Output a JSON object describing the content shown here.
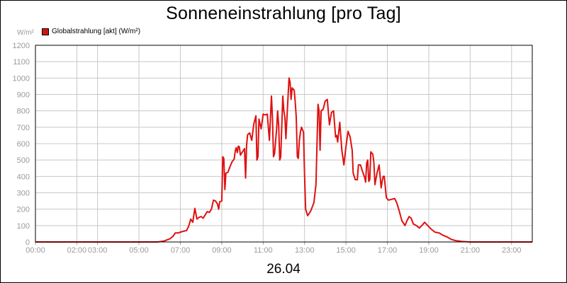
{
  "chart_data": {
    "type": "line",
    "title": "Sonneneinstrahlung [pro Tag]",
    "ylabel": "W/m²",
    "xlabel": "26.04",
    "ylim": [
      0,
      1200
    ],
    "xlim": [
      0,
      24
    ],
    "grid": true,
    "legend_position": "top-left",
    "y_ticks": [
      "0",
      "100",
      "200",
      "300",
      "400",
      "500",
      "600",
      "700",
      "800",
      "900",
      "1000",
      "1100",
      "1200"
    ],
    "x_ticks": [
      {
        "label": "00:00",
        "x": 0
      },
      {
        "label": "02:00",
        "x": 2
      },
      {
        "label": "03:00",
        "x": 3
      },
      {
        "label": "05:00",
        "x": 5
      },
      {
        "label": "07:00",
        "x": 7
      },
      {
        "label": "09:00",
        "x": 9
      },
      {
        "label": "11:00",
        "x": 11
      },
      {
        "label": "13:00",
        "x": 13
      },
      {
        "label": "15:00",
        "x": 15
      },
      {
        "label": "17:00",
        "x": 17
      },
      {
        "label": "19:00",
        "x": 19
      },
      {
        "label": "21:00",
        "x": 21
      },
      {
        "label": "23:00",
        "x": 23
      }
    ],
    "series": [
      {
        "name": "Globalstrahlung [akt] (W/m²)",
        "color": "#e01010",
        "points": [
          [
            0,
            0
          ],
          [
            5.9,
            0
          ],
          [
            6.2,
            5
          ],
          [
            6.5,
            20
          ],
          [
            6.65,
            35
          ],
          [
            6.75,
            55
          ],
          [
            6.9,
            55
          ],
          [
            7.0,
            60
          ],
          [
            7.15,
            65
          ],
          [
            7.3,
            70
          ],
          [
            7.4,
            95
          ],
          [
            7.5,
            140
          ],
          [
            7.6,
            120
          ],
          [
            7.7,
            205
          ],
          [
            7.8,
            140
          ],
          [
            7.9,
            150
          ],
          [
            8.0,
            155
          ],
          [
            8.1,
            145
          ],
          [
            8.2,
            165
          ],
          [
            8.3,
            185
          ],
          [
            8.4,
            180
          ],
          [
            8.5,
            200
          ],
          [
            8.6,
            255
          ],
          [
            8.7,
            250
          ],
          [
            8.8,
            230
          ],
          [
            8.85,
            200
          ],
          [
            8.9,
            245
          ],
          [
            9.0,
            250
          ],
          [
            9.05,
            520
          ],
          [
            9.1,
            510
          ],
          [
            9.15,
            320
          ],
          [
            9.2,
            420
          ],
          [
            9.3,
            425
          ],
          [
            9.4,
            460
          ],
          [
            9.5,
            490
          ],
          [
            9.6,
            505
          ],
          [
            9.65,
            555
          ],
          [
            9.7,
            575
          ],
          [
            9.75,
            545
          ],
          [
            9.8,
            585
          ],
          [
            9.85,
            580
          ],
          [
            9.9,
            530
          ],
          [
            10.0,
            550
          ],
          [
            10.1,
            570
          ],
          [
            10.15,
            390
          ],
          [
            10.2,
            590
          ],
          [
            10.25,
            655
          ],
          [
            10.35,
            665
          ],
          [
            10.45,
            620
          ],
          [
            10.55,
            720
          ],
          [
            10.65,
            770
          ],
          [
            10.7,
            500
          ],
          [
            10.75,
            520
          ],
          [
            10.8,
            750
          ],
          [
            10.9,
            690
          ],
          [
            11.0,
            780
          ],
          [
            11.1,
            775
          ],
          [
            11.2,
            780
          ],
          [
            11.3,
            620
          ],
          [
            11.4,
            890
          ],
          [
            11.45,
            760
          ],
          [
            11.5,
            520
          ],
          [
            11.55,
            540
          ],
          [
            11.65,
            690
          ],
          [
            11.7,
            800
          ],
          [
            11.75,
            710
          ],
          [
            11.8,
            500
          ],
          [
            11.85,
            520
          ],
          [
            11.95,
            890
          ],
          [
            12.0,
            800
          ],
          [
            12.05,
            760
          ],
          [
            12.1,
            630
          ],
          [
            12.15,
            760
          ],
          [
            12.25,
            1000
          ],
          [
            12.3,
            975
          ],
          [
            12.35,
            870
          ],
          [
            12.4,
            940
          ],
          [
            12.5,
            925
          ],
          [
            12.55,
            850
          ],
          [
            12.6,
            760
          ],
          [
            12.65,
            520
          ],
          [
            12.7,
            510
          ],
          [
            12.75,
            620
          ],
          [
            12.8,
            670
          ],
          [
            12.85,
            700
          ],
          [
            12.95,
            670
          ],
          [
            13.0,
            410
          ],
          [
            13.05,
            200
          ],
          [
            13.15,
            160
          ],
          [
            13.3,
            190
          ],
          [
            13.45,
            240
          ],
          [
            13.55,
            350
          ],
          [
            13.65,
            840
          ],
          [
            13.7,
            800
          ],
          [
            13.75,
            560
          ],
          [
            13.8,
            800
          ],
          [
            13.9,
            810
          ],
          [
            14.0,
            860
          ],
          [
            14.1,
            870
          ],
          [
            14.2,
            715
          ],
          [
            14.3,
            790
          ],
          [
            14.4,
            800
          ],
          [
            14.5,
            640
          ],
          [
            14.55,
            650
          ],
          [
            14.6,
            610
          ],
          [
            14.7,
            730
          ],
          [
            14.8,
            560
          ],
          [
            14.9,
            470
          ],
          [
            15.0,
            580
          ],
          [
            15.1,
            675
          ],
          [
            15.2,
            640
          ],
          [
            15.3,
            560
          ],
          [
            15.35,
            420
          ],
          [
            15.45,
            380
          ],
          [
            15.55,
            380
          ],
          [
            15.6,
            470
          ],
          [
            15.7,
            470
          ],
          [
            15.8,
            430
          ],
          [
            15.9,
            395
          ],
          [
            15.95,
            365
          ],
          [
            16.0,
            480
          ],
          [
            16.05,
            500
          ],
          [
            16.1,
            370
          ],
          [
            16.15,
            380
          ],
          [
            16.2,
            550
          ],
          [
            16.3,
            535
          ],
          [
            16.35,
            480
          ],
          [
            16.4,
            350
          ],
          [
            16.5,
            420
          ],
          [
            16.6,
            470
          ],
          [
            16.7,
            330
          ],
          [
            16.75,
            370
          ],
          [
            16.8,
            400
          ],
          [
            16.85,
            400
          ],
          [
            16.95,
            270
          ],
          [
            17.05,
            255
          ],
          [
            17.2,
            260
          ],
          [
            17.35,
            265
          ],
          [
            17.45,
            240
          ],
          [
            17.55,
            200
          ],
          [
            17.7,
            130
          ],
          [
            17.85,
            100
          ],
          [
            17.95,
            130
          ],
          [
            18.05,
            155
          ],
          [
            18.15,
            145
          ],
          [
            18.25,
            110
          ],
          [
            18.4,
            100
          ],
          [
            18.55,
            85
          ],
          [
            18.7,
            105
          ],
          [
            18.8,
            120
          ],
          [
            18.95,
            100
          ],
          [
            19.1,
            80
          ],
          [
            19.3,
            60
          ],
          [
            19.5,
            55
          ],
          [
            19.7,
            40
          ],
          [
            19.9,
            30
          ],
          [
            20.1,
            15
          ],
          [
            20.3,
            8
          ],
          [
            20.6,
            3
          ],
          [
            21.0,
            0
          ],
          [
            24,
            0
          ]
        ]
      }
    ]
  }
}
